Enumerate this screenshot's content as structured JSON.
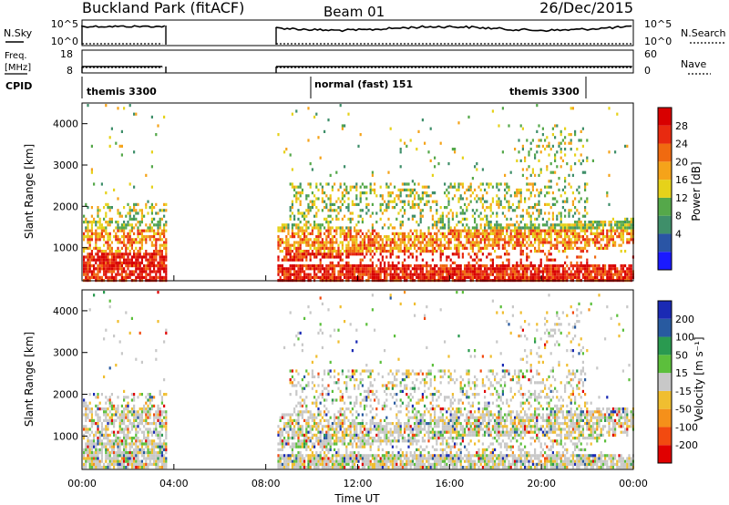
{
  "header": {
    "station": "Buckland Park (fitACF)",
    "beam": "Beam 01",
    "date": "26/Dec/2015"
  },
  "panels": {
    "nsky": {
      "label": "N.Sky",
      "ticks": [
        "10^5",
        "10^0"
      ]
    },
    "nsearch": {
      "label": "N.Search",
      "ticks": [
        "10^5",
        "10^0"
      ]
    },
    "freq": {
      "label_top": "Freq.",
      "label_bottom": "[MHz]",
      "ticks": [
        "18",
        "8"
      ]
    },
    "nave": {
      "label": "Nave",
      "ticks": [
        "60",
        "0"
      ]
    },
    "cpid": {
      "label": "CPID",
      "segments": [
        "themis 3300",
        "normal (fast) 151",
        "themis 3300"
      ]
    }
  },
  "colors": {
    "power": [
      "#1a1aff",
      "#2a55a5",
      "#3f8f6a",
      "#55a84a",
      "#e6d21a",
      "#f5a31a",
      "#f06a10",
      "#e82a10",
      "#d80000"
    ],
    "velocity": [
      "#e00000",
      "#f24a10",
      "#f5901a",
      "#f0be30",
      "#c8c8c8",
      "#5cbf3c",
      "#2a9a50",
      "#285aa0",
      "#1a2ab4"
    ]
  },
  "chart_data": [
    {
      "type": "heatmap",
      "name": "power",
      "ylabel": "Slant Range [km]",
      "yticks": [
        1000,
        2000,
        3000,
        4000
      ],
      "ylim": [
        200,
        4500
      ],
      "xlim": [
        0,
        24
      ],
      "colorbar": {
        "label": "Power [dB]",
        "ticks": [
          "28",
          "24",
          "20",
          "16",
          "12",
          "8",
          "4"
        ]
      }
    },
    {
      "type": "heatmap",
      "name": "velocity",
      "ylabel": "Slant Range [km]",
      "yticks": [
        1000,
        2000,
        3000,
        4000
      ],
      "ylim": [
        200,
        4500
      ],
      "xlim": [
        0,
        24
      ],
      "xlabel": "Time UT",
      "xticks": [
        "00:00",
        "04:00",
        "08:00",
        "12:00",
        "16:00",
        "20:00",
        "00:00"
      ],
      "colorbar": {
        "label": "Velocity [m s⁻¹]",
        "ticks": [
          "200",
          "100",
          "50",
          "15",
          "-15",
          "-50",
          "-100",
          "-200"
        ]
      }
    }
  ]
}
